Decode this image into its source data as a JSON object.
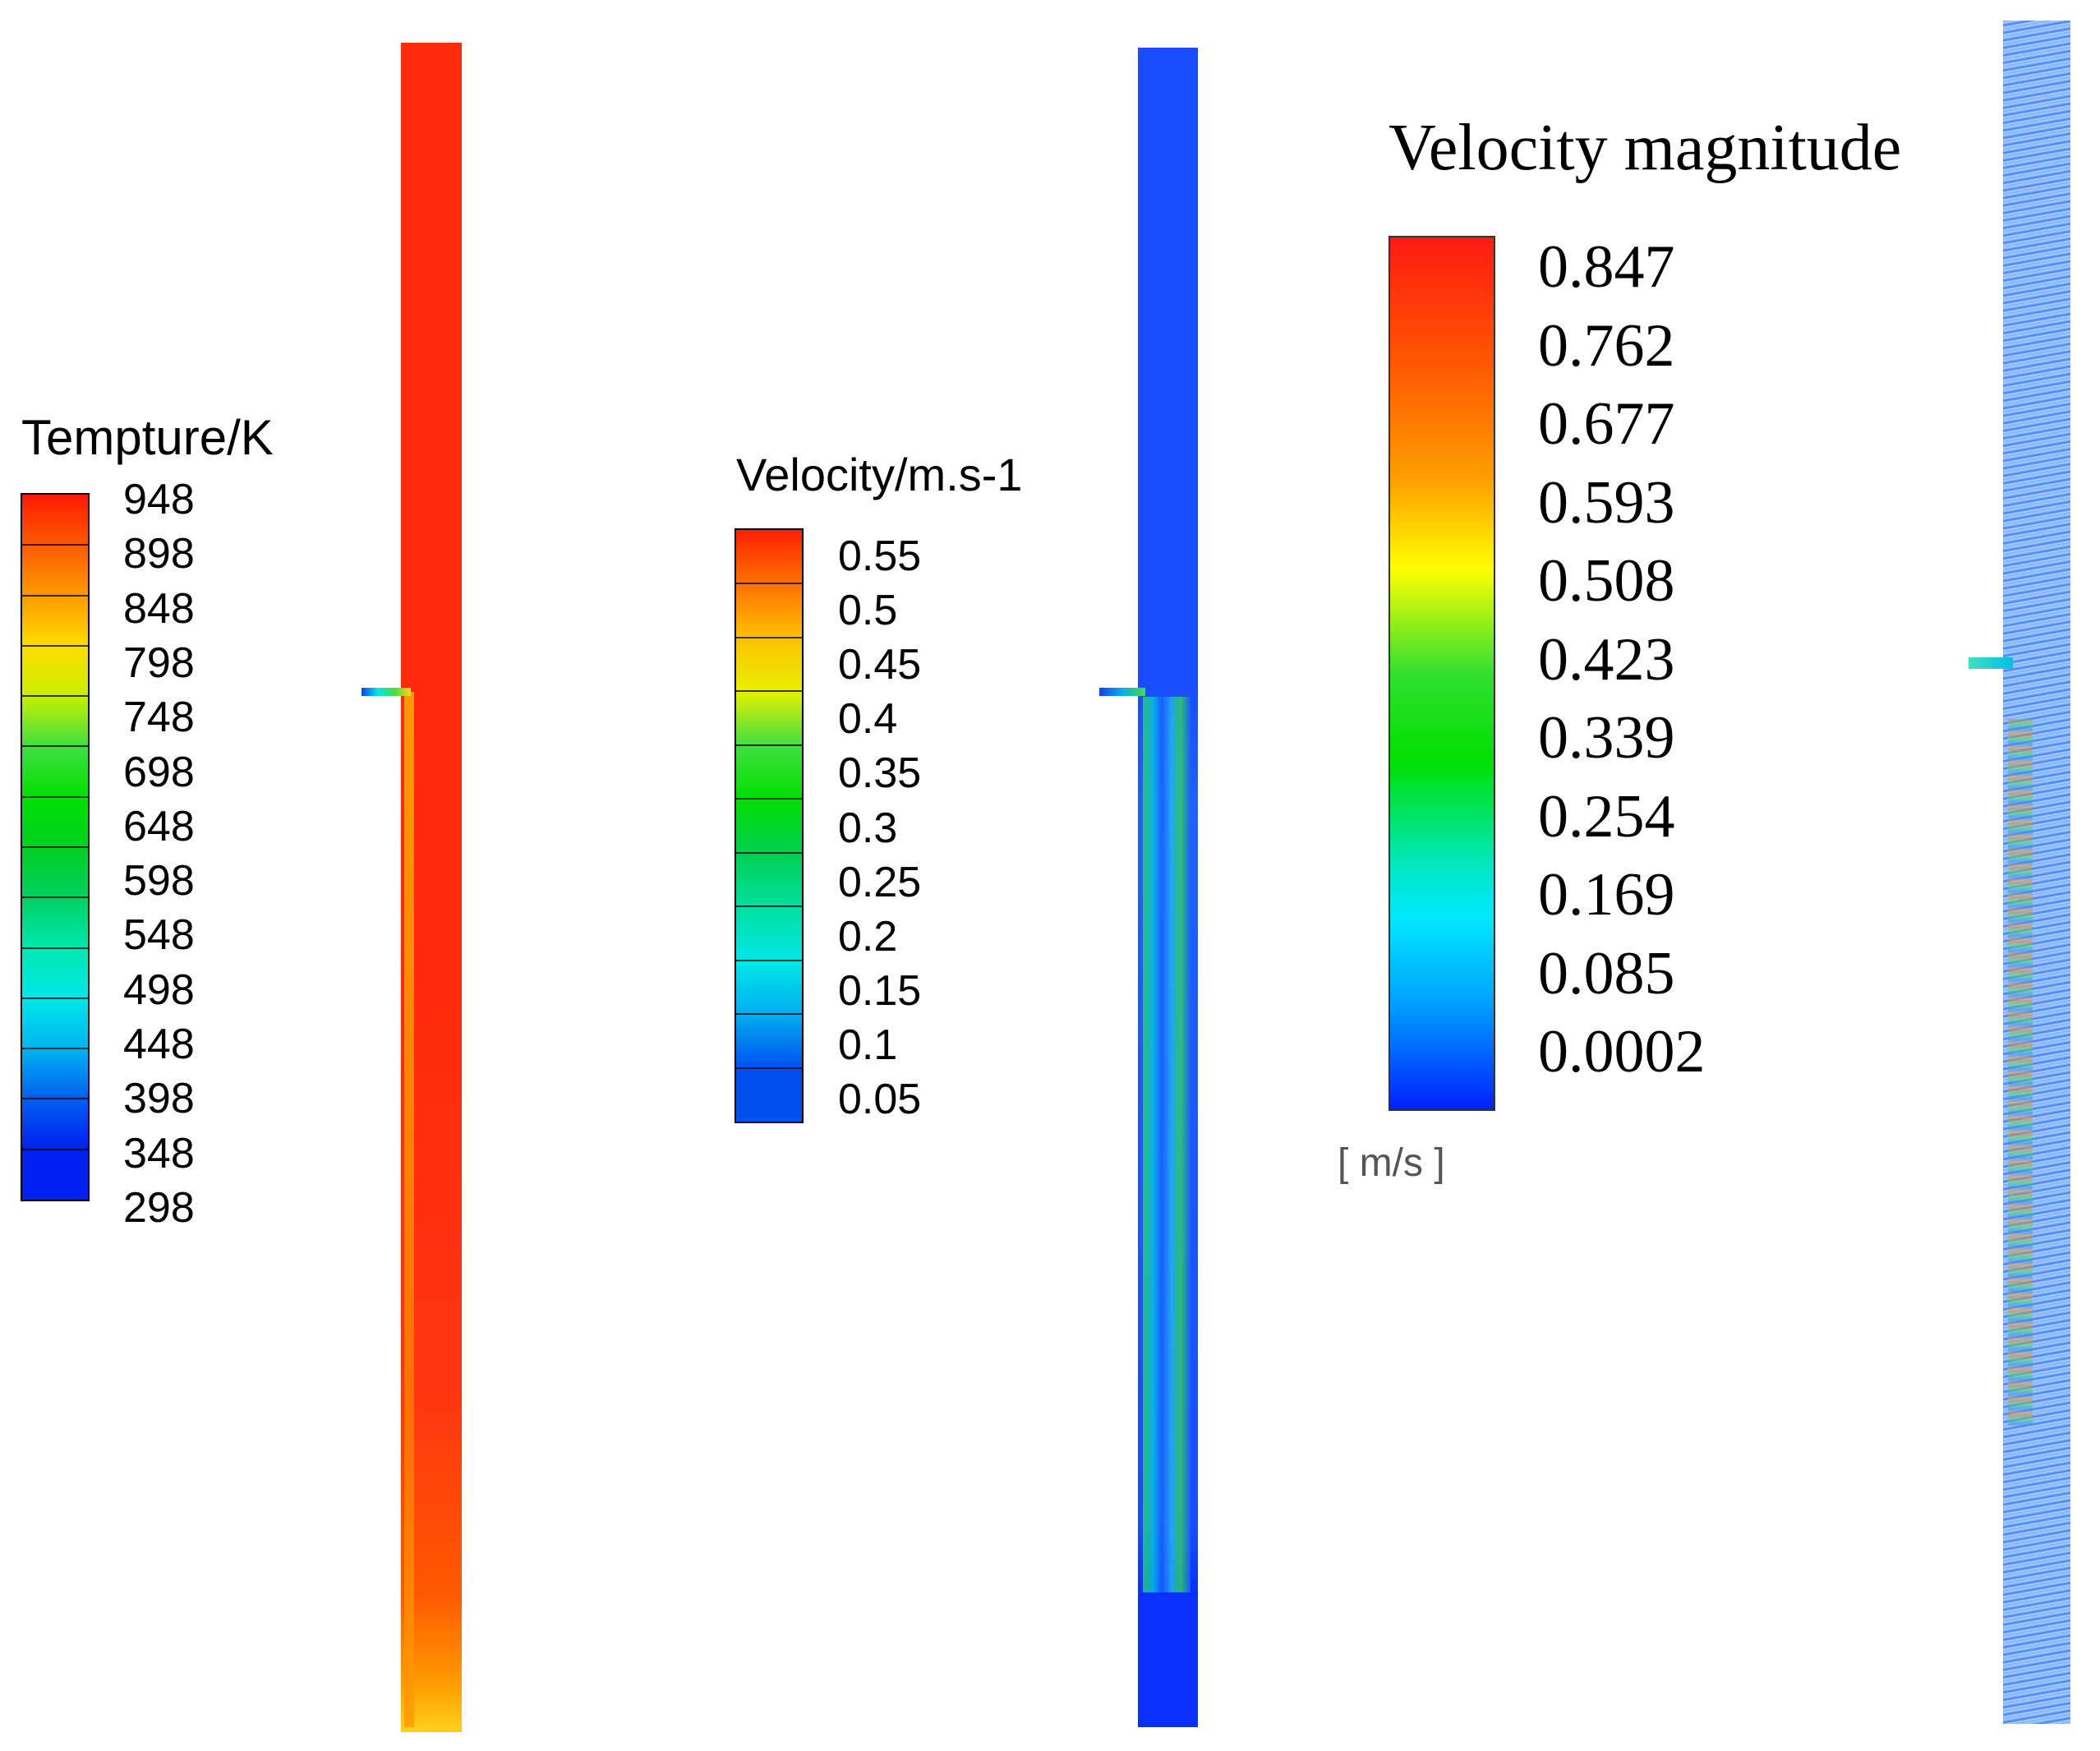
{
  "legend_temperature": {
    "title": "Tempture/K",
    "ticks": [
      "948",
      "898",
      "848",
      "798",
      "748",
      "698",
      "648",
      "598",
      "548",
      "498",
      "448",
      "398",
      "348",
      "298"
    ],
    "colors": [
      "#ff1a00",
      "#ff5a00",
      "#ff9a00",
      "#ffdc00",
      "#c8f000",
      "#40e040",
      "#00e000",
      "#00d020",
      "#00d060",
      "#00e8b0",
      "#00e8e8",
      "#00b4f0",
      "#0060f0",
      "#0020f0"
    ]
  },
  "legend_velocity": {
    "title": "Velocity/m.s-1",
    "ticks": [
      "0.55",
      "0.5",
      "0.45",
      "0.4",
      "0.35",
      "0.3",
      "0.25",
      "0.2",
      "0.15",
      "0.1",
      "0.05"
    ],
    "colors": [
      "#ff2000",
      "#ff7000",
      "#ffc000",
      "#e8f000",
      "#40e040",
      "#00e000",
      "#00d050",
      "#00e0a0",
      "#00e8e8",
      "#00b0f0",
      "#0050f0"
    ]
  },
  "legend_velocity_magnitude": {
    "title": "Velocity magnitude",
    "ticks": [
      "0.847",
      "0.762",
      "0.677",
      "0.593",
      "0.508",
      "0.423",
      "0.339",
      "0.254",
      "0.169",
      "0.085",
      "0.0002"
    ],
    "unit": "[ m/s ]"
  },
  "contour_colors": {
    "hot": "#ff2a0a",
    "warm": "#ff7a00",
    "yellow": "#ffd21a",
    "flow_blue": "#1040ff",
    "flow_green": "#30e040"
  }
}
